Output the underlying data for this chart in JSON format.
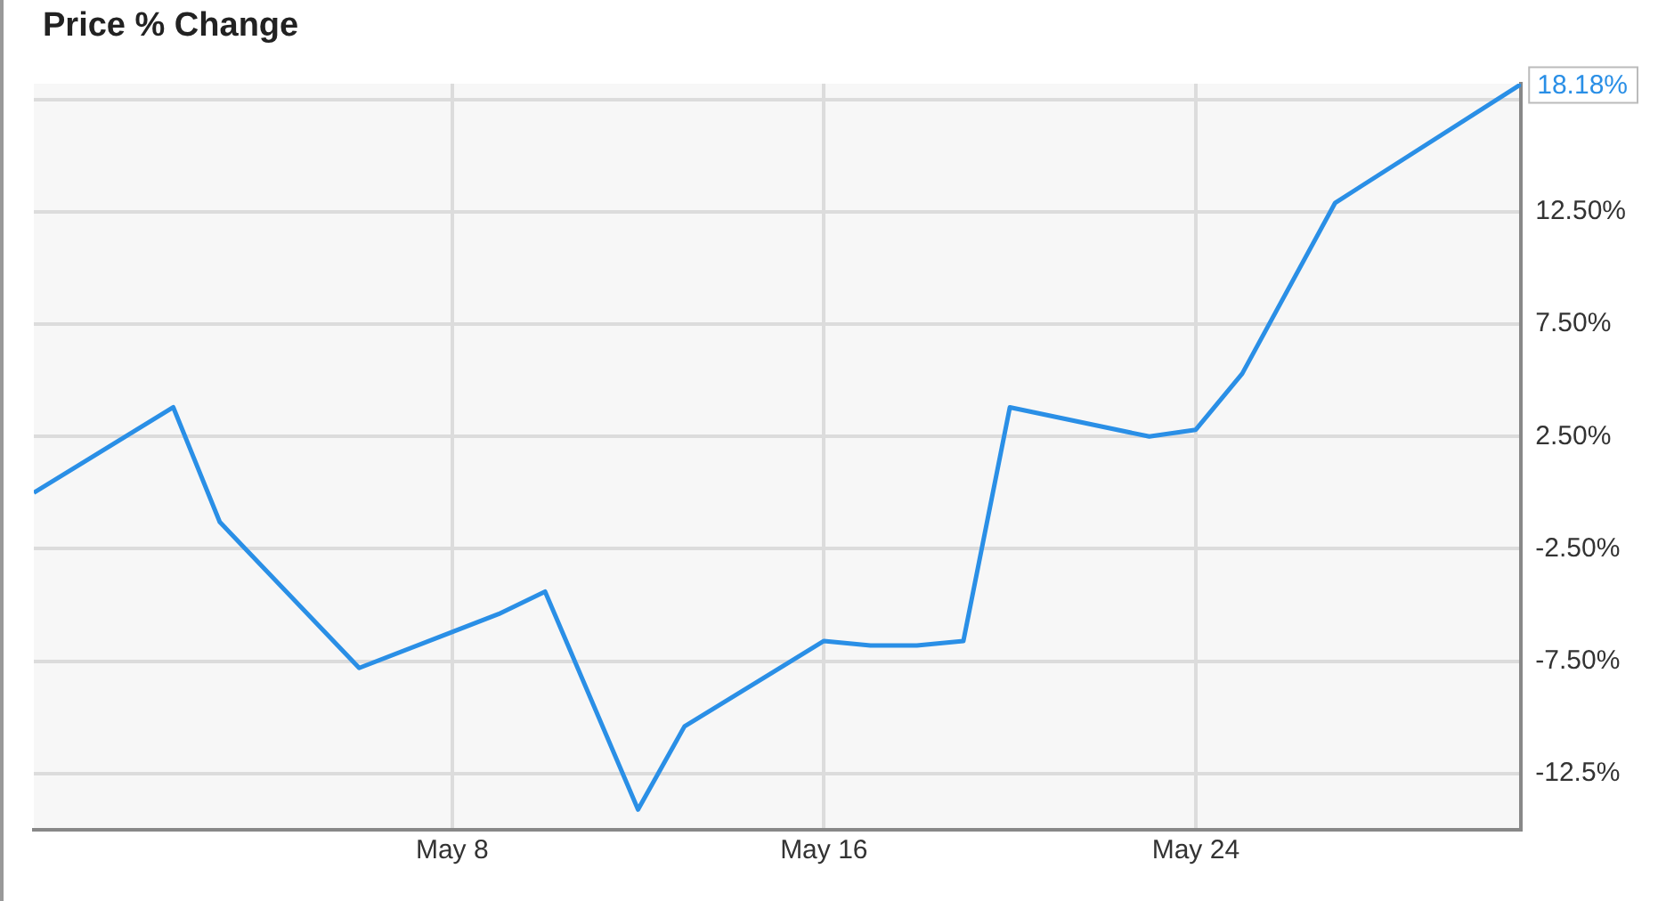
{
  "chart_data": {
    "type": "line",
    "title": "Price % Change",
    "x": [
      "--04-29",
      "--05-02",
      "--05-03",
      "--05-06",
      "--05-09",
      "--05-10",
      "--05-12",
      "--05-13",
      "--05-16",
      "--05-17",
      "--05-18",
      "--05-19",
      "--05-20",
      "--05-23",
      "--05-24",
      "--05-25",
      "--05-27",
      "--05-31"
    ],
    "series": [
      {
        "color": "#2a8fe6",
        "values": [
          0.0,
          3.8,
          -1.3,
          -7.8,
          -5.4,
          -4.4,
          -14.1,
          -10.4,
          -6.6,
          -6.8,
          -6.8,
          -6.6,
          3.8,
          2.5,
          2.8,
          5.3,
          12.9,
          18.18
        ]
      }
    ],
    "xlim": [
      "--04-29",
      "--05-31"
    ],
    "xticks": [
      {
        "value": "--05-08",
        "label": "May 8"
      },
      {
        "value": "--05-16",
        "label": "May 16"
      },
      {
        "value": "--05-24",
        "label": "May 24"
      }
    ],
    "ylim": [
      -15,
      18.2
    ],
    "yticks": [
      {
        "value": -12.5,
        "label": "-12.5%"
      },
      {
        "value": -7.5,
        "label": "-7.50%"
      },
      {
        "value": -2.5,
        "label": "-2.50%"
      },
      {
        "value": 2.5,
        "label": "2.50%"
      },
      {
        "value": 7.5,
        "label": "7.50%"
      },
      {
        "value": 12.5,
        "label": "12.50%"
      },
      {
        "value": 17.5,
        "label": null
      }
    ],
    "annotations": [
      {
        "text": "18.18%",
        "x": "--05-31",
        "y": 18.18
      }
    ],
    "grid": true,
    "legend": false,
    "marker": "none",
    "line_style": "solid"
  }
}
